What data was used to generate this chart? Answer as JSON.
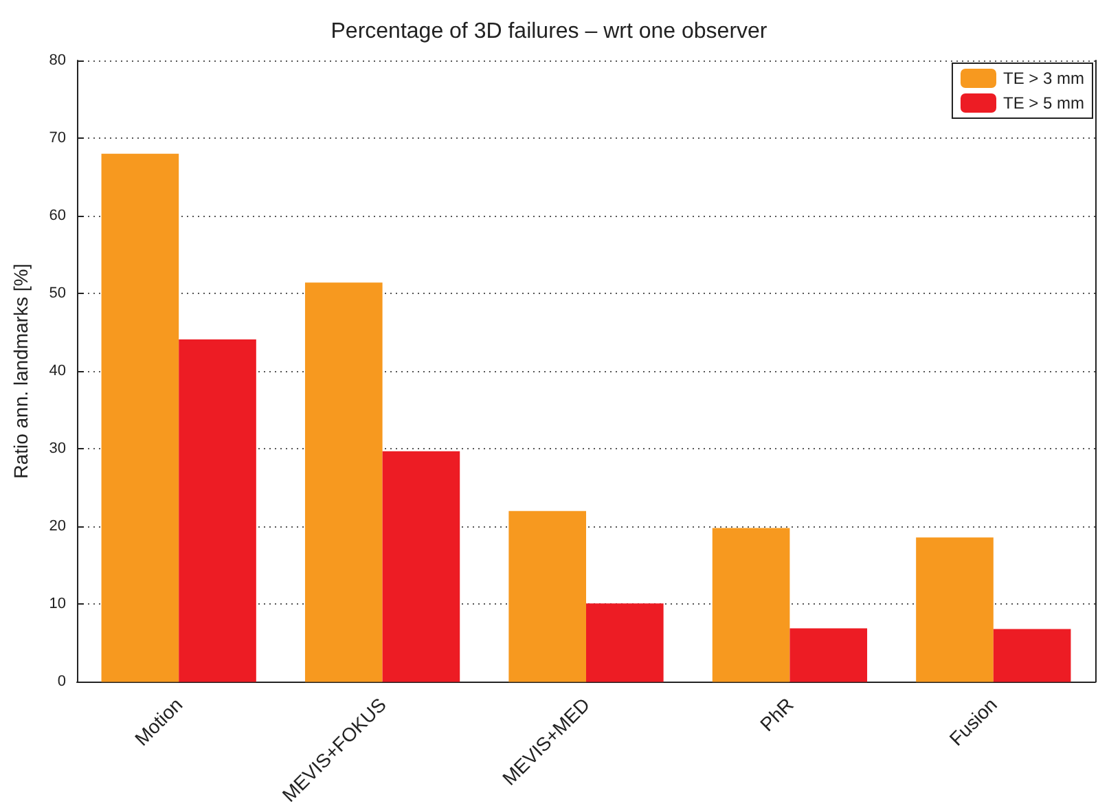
{
  "chart_data": {
    "type": "bar",
    "title": "Percentage of 3D failures – wrt one observer",
    "ylabel": "Ratio ann. landmarks [%]",
    "categories": [
      "Motion",
      "MEVIS+FOKUS",
      "MEVIS+MED",
      "PhR",
      "Fusion"
    ],
    "series": [
      {
        "name": "TE > 3 mm",
        "color": "#f7991f",
        "values": [
          68.0,
          51.4,
          22.0,
          19.8,
          18.6
        ]
      },
      {
        "name": "TE > 5 mm",
        "color": "#ed1c24",
        "values": [
          44.1,
          29.7,
          10.1,
          6.9,
          6.8
        ]
      }
    ],
    "ylim": [
      0,
      80
    ],
    "yticks": [
      0,
      10,
      20,
      30,
      40,
      50,
      60,
      70,
      80
    ],
    "grid": "y",
    "legend": "top right"
  }
}
